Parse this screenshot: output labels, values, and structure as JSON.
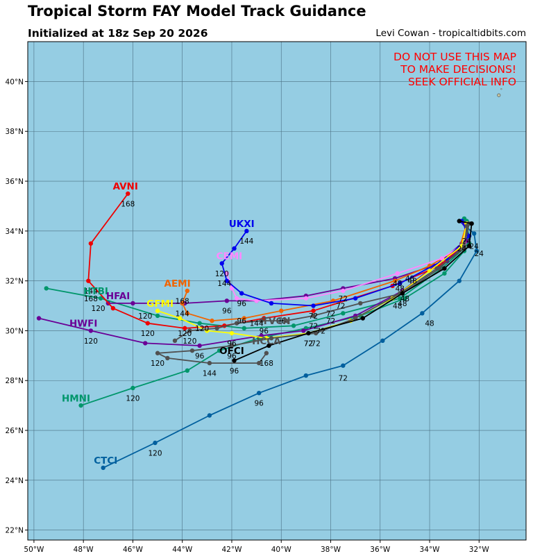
{
  "header": {
    "title": "Tropical Storm FAY Model Track Guidance",
    "subtitle": "Initialized at 18z Sep 20 2026",
    "credit": "Levi Cowan - tropicaltidbits.com"
  },
  "warning": [
    "DO NOT USE THIS MAP",
    "TO MAKE DECISIONS!",
    "SEEK OFFICIAL INFO"
  ],
  "map": {
    "lon_range": [
      -50.25,
      -30.1
    ],
    "lat_range": [
      21.6,
      41.6
    ],
    "ocean_color": "#95cde3",
    "grid_color": "#4a6f82",
    "lon_ticks": [
      {
        "v": -50,
        "label": "50°W"
      },
      {
        "v": -48,
        "label": "48°W"
      },
      {
        "v": -46,
        "label": "46°W"
      },
      {
        "v": -44,
        "label": "44°W"
      },
      {
        "v": -42,
        "label": "42°W"
      },
      {
        "v": -40,
        "label": "40°W"
      },
      {
        "v": -38,
        "label": "38°W"
      },
      {
        "v": -36,
        "label": "36°W"
      },
      {
        "v": -34,
        "label": "34°W"
      },
      {
        "v": -32,
        "label": "32°W"
      }
    ],
    "lat_ticks": [
      {
        "v": 22,
        "label": "22°N"
      },
      {
        "v": 24,
        "label": "24°N"
      },
      {
        "v": 26,
        "label": "26°N"
      },
      {
        "v": 28,
        "label": "28°N"
      },
      {
        "v": 30,
        "label": "30°N"
      },
      {
        "v": 32,
        "label": "32°N"
      },
      {
        "v": 34,
        "label": "34°N"
      },
      {
        "v": 36,
        "label": "36°N"
      },
      {
        "v": 38,
        "label": "38°N"
      },
      {
        "v": 40,
        "label": "40°N"
      }
    ]
  },
  "tracks": [
    {
      "name": "CTCI",
      "color": "#005f9e",
      "points": [
        [
          -32.8,
          34.4
        ],
        [
          -32.2,
          33.9
        ],
        [
          -32.1,
          33.2
        ],
        [
          -32.8,
          32.0
        ],
        [
          -34.3,
          30.7
        ],
        [
          -35.9,
          29.6
        ],
        [
          -37.5,
          28.6
        ],
        [
          -39.0,
          28.2
        ],
        [
          -40.9,
          27.5
        ],
        [
          -42.9,
          26.6
        ],
        [
          -45.1,
          25.5
        ],
        [
          -47.2,
          24.5
        ]
      ],
      "hours": [
        {
          "label": "24",
          "at": [
            -32.0,
            33.1
          ]
        },
        {
          "label": "48",
          "at": [
            -34.0,
            30.3
          ]
        },
        {
          "label": "72",
          "at": [
            -37.5,
            28.1
          ]
        },
        {
          "label": "96",
          "at": [
            -40.9,
            27.1
          ]
        },
        {
          "label": "120",
          "at": [
            -45.1,
            25.1
          ]
        }
      ],
      "name_at": [
        -47.1,
        24.8
      ]
    },
    {
      "name": "HMNI",
      "color": "#00966b",
      "points": [
        [
          -32.6,
          34.5
        ],
        [
          -32.4,
          33.8
        ],
        [
          -32.6,
          33.2
        ],
        [
          -33.4,
          32.3
        ],
        [
          -35.0,
          31.3
        ],
        [
          -36.8,
          30.6
        ],
        [
          -39.0,
          30.1
        ],
        [
          -40.9,
          29.7
        ],
        [
          -42.5,
          29.2
        ],
        [
          -43.8,
          28.4
        ],
        [
          -46.0,
          27.7
        ],
        [
          -48.1,
          27.0
        ]
      ],
      "hours": [
        {
          "label": "120",
          "at": [
            -46.0,
            27.3
          ]
        }
      ],
      "name_at": [
        -48.3,
        27.3
      ]
    },
    {
      "name": "HTBI",
      "color": "#00966b",
      "points": [
        [
          -32.5,
          34.4
        ],
        [
          -32.4,
          33.5
        ],
        [
          -33.5,
          32.5
        ],
        [
          -35.2,
          31.3
        ],
        [
          -37.5,
          30.7
        ],
        [
          -39.5,
          30.2
        ],
        [
          -41.5,
          30.1
        ],
        [
          -43.3,
          30.3
        ],
        [
          -45.0,
          30.6
        ],
        [
          -47.3,
          31.3
        ],
        [
          -49.5,
          31.7
        ]
      ],
      "hours": [
        {
          "label": "120",
          "at": [
            -47.4,
            30.9
          ]
        }
      ],
      "name_at": [
        -47.5,
        31.6
      ]
    },
    {
      "name": "HFAI",
      "color": "#6a0096",
      "points": [
        [
          -32.6,
          34.3
        ],
        [
          -32.5,
          33.6
        ],
        [
          -33.3,
          32.8
        ],
        [
          -35.4,
          32.1
        ],
        [
          -37.5,
          31.7
        ],
        [
          -39.0,
          31.4
        ],
        [
          -41.0,
          31.2
        ],
        [
          -42.2,
          31.2
        ],
        [
          -43.9,
          31.1
        ],
        [
          -46.0,
          31.1
        ],
        [
          -47.0,
          31.1
        ]
      ],
      "hours": [
        {
          "label": "72",
          "at": [
            -37.5,
            31.3
          ]
        },
        {
          "label": "96",
          "at": [
            -42.2,
            30.8
          ]
        },
        {
          "label": "144",
          "at": [
            -44.0,
            30.7
          ]
        },
        {
          "label": "168",
          "at": [
            -47.7,
            31.3
          ]
        }
      ],
      "name_at": [
        -46.6,
        31.4
      ]
    },
    {
      "name": "HWFI",
      "color": "#6a0096",
      "points": [
        [
          -32.5,
          34.2
        ],
        [
          -32.7,
          33.5
        ],
        [
          -33.8,
          32.6
        ],
        [
          -35.1,
          31.6
        ],
        [
          -37.0,
          30.6
        ],
        [
          -39.1,
          30.0
        ],
        [
          -40.8,
          29.8
        ],
        [
          -43.3,
          29.4
        ],
        [
          -45.5,
          29.5
        ],
        [
          -47.7,
          30.0
        ],
        [
          -49.8,
          30.5
        ]
      ],
      "hours": [
        {
          "label": "96",
          "at": [
            -43.3,
            29.0
          ]
        },
        {
          "label": "120",
          "at": [
            -47.7,
            29.6
          ]
        }
      ],
      "name_at": [
        -48.0,
        30.3
      ]
    },
    {
      "name": "AVNI",
      "color": "#ee0000",
      "points": [
        [
          -32.5,
          34.3
        ],
        [
          -32.6,
          33.5
        ],
        [
          -33.6,
          32.6
        ],
        [
          -35.5,
          31.8
        ],
        [
          -38.7,
          30.8
        ],
        [
          -40.7,
          30.5
        ],
        [
          -42.3,
          30.2
        ],
        [
          -43.9,
          30.1
        ],
        [
          -45.4,
          30.3
        ],
        [
          -46.8,
          30.9
        ],
        [
          -47.8,
          32.0
        ],
        [
          -47.7,
          33.5
        ],
        [
          -46.2,
          35.5
        ]
      ],
      "hours": [
        {
          "label": "72",
          "at": [
            -38.0,
            30.7
          ]
        },
        {
          "label": "120",
          "at": [
            -45.4,
            29.9
          ]
        },
        {
          "label": "120",
          "at": [
            -43.9,
            29.9
          ]
        },
        {
          "label": "144",
          "at": [
            -47.7,
            31.6
          ]
        },
        {
          "label": "168",
          "at": [
            -46.2,
            35.1
          ]
        }
      ],
      "name_at": [
        -46.3,
        35.8
      ]
    },
    {
      "name": "AEMI",
      "color": "#f06400",
      "points": [
        [
          -32.5,
          34.3
        ],
        [
          -32.8,
          33.3
        ],
        [
          -34.0,
          32.6
        ],
        [
          -35.4,
          32.0
        ],
        [
          -37.9,
          31.2
        ],
        [
          -40.0,
          30.8
        ],
        [
          -41.5,
          30.5
        ],
        [
          -42.8,
          30.4
        ],
        [
          -43.8,
          30.7
        ],
        [
          -44.0,
          31.1
        ],
        [
          -43.8,
          31.6
        ]
      ],
      "hours": [
        {
          "label": "48",
          "at": [
            -34.8,
            32.1
          ]
        },
        {
          "label": "96",
          "at": [
            -40.0,
            30.4
          ]
        },
        {
          "label": "120",
          "at": [
            -43.2,
            30.1
          ]
        },
        {
          "label": "168",
          "at": [
            -44.0,
            31.2
          ]
        }
      ],
      "name_at": [
        -44.2,
        31.9
      ]
    },
    {
      "name": "CEMI",
      "color": "#ff88ff",
      "points": [
        [
          -32.5,
          34.3
        ],
        [
          -32.6,
          33.5
        ],
        [
          -33.5,
          32.9
        ],
        [
          -35.3,
          32.3
        ],
        [
          -37.5,
          31.6
        ],
        [
          -39.0,
          31.3
        ],
        [
          -41.0,
          31.2
        ],
        [
          -41.8,
          31.3
        ],
        [
          -42.0,
          31.7
        ],
        [
          -42.2,
          32.3
        ]
      ],
      "hours": [
        {
          "label": "48",
          "at": [
            -35.3,
            31.9
          ]
        },
        {
          "label": "144",
          "at": [
            -42.3,
            31.9
          ]
        }
      ],
      "name_at": [
        -42.1,
        33.0
      ]
    },
    {
      "name": "UKXI",
      "color": "#0000ee",
      "points": [
        [
          -32.7,
          34.4
        ],
        [
          -32.4,
          33.8
        ],
        [
          -33.3,
          32.9
        ],
        [
          -35.2,
          31.9
        ],
        [
          -37.0,
          31.3
        ],
        [
          -38.7,
          31.0
        ],
        [
          -40.4,
          31.1
        ],
        [
          -41.6,
          31.5
        ],
        [
          -42.2,
          32.0
        ],
        [
          -42.4,
          32.7
        ],
        [
          -41.9,
          33.3
        ],
        [
          -41.4,
          34.0
        ]
      ],
      "hours": [
        {
          "label": "72",
          "at": [
            -38.7,
            30.6
          ]
        },
        {
          "label": "96",
          "at": [
            -41.6,
            31.1
          ]
        },
        {
          "label": "120",
          "at": [
            -42.4,
            32.3
          ]
        },
        {
          "label": "144",
          "at": [
            -41.4,
            33.6
          ]
        }
      ],
      "name_at": [
        -41.6,
        34.3
      ]
    },
    {
      "name": "GFMI",
      "color": "#ffff00",
      "points": [
        [
          -32.5,
          34.3
        ],
        [
          -32.7,
          33.4
        ],
        [
          -34.0,
          32.4
        ],
        [
          -35.5,
          31.3
        ],
        [
          -37.2,
          30.4
        ],
        [
          -38.9,
          29.9
        ],
        [
          -40.6,
          29.7
        ],
        [
          -42.0,
          29.9
        ],
        [
          -43.0,
          30.0
        ],
        [
          -44.1,
          30.5
        ],
        [
          -45.0,
          30.8
        ]
      ],
      "hours": [
        {
          "label": "72",
          "at": [
            -38.9,
            29.5
          ]
        },
        {
          "label": "96",
          "at": [
            -42.0,
            29.5
          ]
        },
        {
          "label": "120",
          "at": [
            -45.5,
            30.6
          ]
        }
      ],
      "name_at": [
        -44.9,
        31.1
      ]
    },
    {
      "name": "HCCA",
      "color": "#505050",
      "points": [
        [
          -32.5,
          34.2
        ],
        [
          -32.6,
          33.3
        ],
        [
          -33.7,
          32.5
        ],
        [
          -35.2,
          31.5
        ],
        [
          -37.0,
          30.5
        ],
        [
          -38.6,
          29.9
        ],
        [
          -40.4,
          29.7
        ],
        [
          -42.0,
          29.4
        ],
        [
          -43.6,
          29.2
        ],
        [
          -45.0,
          29.1
        ],
        [
          -44.6,
          28.9
        ],
        [
          -42.9,
          28.7
        ],
        [
          -40.9,
          28.7
        ],
        [
          -40.6,
          29.1
        ]
      ],
      "hours": [
        {
          "label": "72",
          "at": [
            -38.6,
            29.5
          ]
        },
        {
          "label": "96",
          "at": [
            -42.0,
            29.0
          ]
        },
        {
          "label": "120",
          "at": [
            -45.0,
            28.7
          ]
        },
        {
          "label": "144",
          "at": [
            -42.9,
            28.3
          ]
        },
        {
          "label": "168",
          "at": [
            -40.6,
            28.7
          ]
        }
      ],
      "name_at": [
        -40.6,
        29.6
      ]
    },
    {
      "name": "TVCN",
      "color": "#505050",
      "points": [
        [
          -32.4,
          34.3
        ],
        [
          -32.6,
          33.4
        ],
        [
          -33.6,
          32.5
        ],
        [
          -35.1,
          31.5
        ],
        [
          -36.8,
          31.1
        ],
        [
          -38.7,
          30.6
        ],
        [
          -39.8,
          30.4
        ],
        [
          -40.8,
          30.4
        ],
        [
          -41.8,
          30.3
        ],
        [
          -42.6,
          30.1
        ],
        [
          -43.7,
          30.0
        ],
        [
          -44.3,
          29.6
        ]
      ],
      "hours": [
        {
          "label": "72",
          "at": [
            -38.7,
            30.2
          ]
        },
        {
          "label": "144",
          "at": [
            -41.0,
            30.3
          ]
        },
        {
          "label": "120",
          "at": [
            -43.7,
            29.6
          ]
        }
      ],
      "name_at": [
        -40.2,
        30.4
      ]
    },
    {
      "name": "OFCI",
      "color": "#000000",
      "points": [
        [
          -32.8,
          34.4
        ],
        [
          -32.3,
          34.3
        ],
        [
          -32.4,
          33.4
        ],
        [
          -33.4,
          32.5
        ],
        [
          -35.1,
          31.5
        ],
        [
          -36.7,
          30.5
        ],
        [
          -38.9,
          29.9
        ],
        [
          -40.5,
          29.4
        ],
        [
          -41.9,
          28.8
        ]
      ],
      "hours": [
        {
          "label": "48",
          "at": [
            -35.1,
            31.1
          ]
        },
        {
          "label": "72",
          "at": [
            -38.9,
            29.5
          ]
        },
        {
          "label": "96",
          "at": [
            -41.9,
            28.4
          ]
        }
      ],
      "name_at": [
        -42.0,
        29.2
      ]
    }
  ],
  "marker_labels": [
    {
      "label": "24",
      "at": [
        -32.5,
        33.6
      ]
    },
    {
      "label": "24",
      "at": [
        -32.2,
        33.4
      ]
    },
    {
      "label": "24",
      "at": [
        -32.7,
        33.3
      ]
    },
    {
      "label": "48",
      "at": [
        -34.7,
        32.0
      ]
    },
    {
      "label": "48",
      "at": [
        -35.2,
        31.7
      ]
    },
    {
      "label": "48",
      "at": [
        -35.0,
        31.3
      ]
    },
    {
      "label": "48",
      "at": [
        -35.3,
        31.0
      ]
    },
    {
      "label": "72",
      "at": [
        -37.6,
        31.0
      ]
    },
    {
      "label": "72",
      "at": [
        -38.0,
        30.4
      ]
    },
    {
      "label": "72",
      "at": [
        -38.4,
        30.0
      ]
    },
    {
      "label": "96",
      "at": [
        -40.7,
        30.0
      ]
    },
    {
      "label": "96",
      "at": [
        -41.6,
        30.4
      ]
    }
  ]
}
